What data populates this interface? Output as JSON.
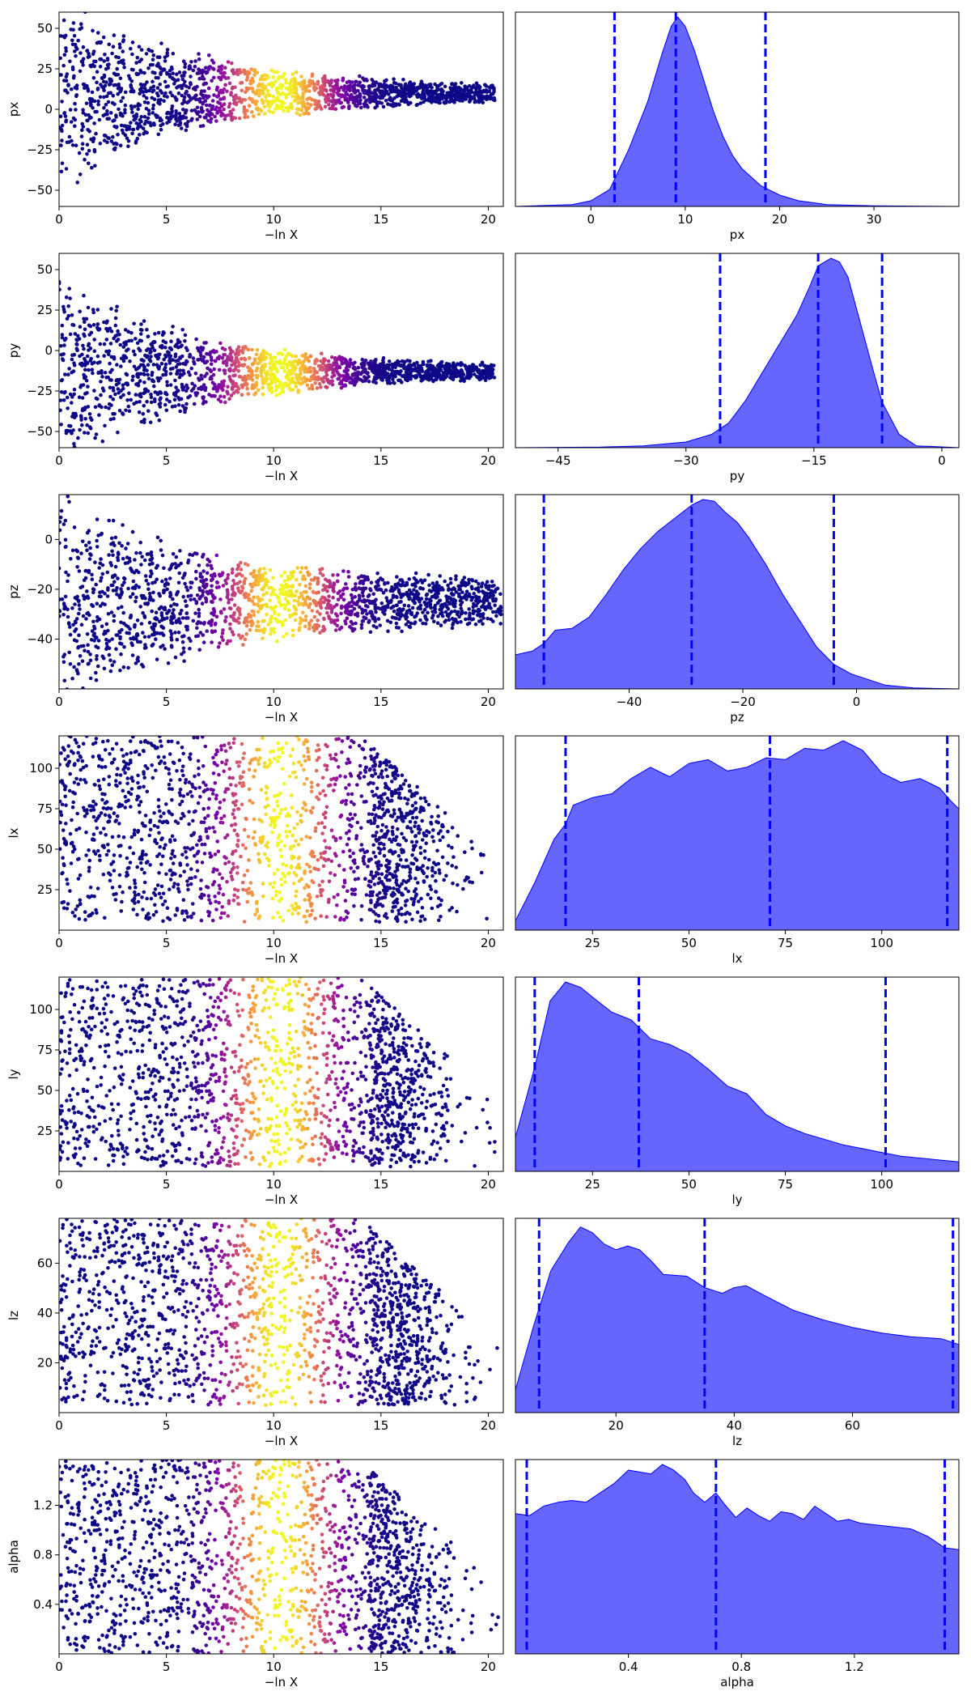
{
  "figure": {
    "title": "",
    "trace_xlabel": "−ln X",
    "trace_xlim": [
      0,
      20.7
    ],
    "trace_xticks": [
      0,
      5,
      10,
      15,
      20
    ],
    "trace_color_peak": 10.3,
    "trace_color_width": 2.6,
    "kde_color": "#0000ff",
    "kde_fill_opacity": 0.6,
    "quantile_line_color": "#0000ff",
    "colormap": "plasma",
    "grid": false,
    "legend": "none"
  },
  "chart_data": [
    {
      "type": "scatter",
      "name": "px",
      "trace": {
        "ylabel": "px",
        "ylim": [
          -60,
          60
        ],
        "yticks": [
          -50,
          -25,
          0,
          25,
          50
        ],
        "center": 10,
        "spread_start": 60,
        "spread_end": 4,
        "converge_at": 20.3
      },
      "posterior": {
        "type": "area",
        "xlabel": "px",
        "xlim": [
          -8,
          39
        ],
        "xticks": [
          0,
          10,
          20,
          30
        ],
        "quantiles": [
          2.5,
          9,
          18.5
        ],
        "density": [
          [
            -8,
            0
          ],
          [
            -2,
            0.01
          ],
          [
            0,
            0.03
          ],
          [
            2,
            0.09
          ],
          [
            4,
            0.3
          ],
          [
            6,
            0.55
          ],
          [
            7.5,
            0.8
          ],
          [
            8.5,
            0.95
          ],
          [
            9.2,
            1.0
          ],
          [
            10,
            0.95
          ],
          [
            11,
            0.82
          ],
          [
            12,
            0.66
          ],
          [
            13,
            0.5
          ],
          [
            14,
            0.37
          ],
          [
            15,
            0.27
          ],
          [
            16,
            0.2
          ],
          [
            18,
            0.11
          ],
          [
            20,
            0.06
          ],
          [
            22,
            0.03
          ],
          [
            25,
            0.01
          ],
          [
            30,
            0.003
          ],
          [
            39,
            0
          ]
        ]
      }
    },
    {
      "type": "scatter",
      "name": "py",
      "trace": {
        "ylabel": "py",
        "ylim": [
          -60,
          60
        ],
        "yticks": [
          -50,
          -25,
          0,
          25,
          50
        ],
        "center": -13,
        "spread_start": 60,
        "spread_end": 3,
        "converge_at": 20.3
      },
      "posterior": {
        "type": "area",
        "xlabel": "py",
        "xlim": [
          -50,
          2
        ],
        "xticks": [
          -45,
          -30,
          -15,
          0
        ],
        "quantiles": [
          -26,
          -14.5,
          -7
        ],
        "density": [
          [
            -50,
            0
          ],
          [
            -40,
            0.003
          ],
          [
            -35,
            0.01
          ],
          [
            -30,
            0.03
          ],
          [
            -27,
            0.07
          ],
          [
            -25,
            0.13
          ],
          [
            -23,
            0.25
          ],
          [
            -21,
            0.4
          ],
          [
            -19,
            0.55
          ],
          [
            -17,
            0.7
          ],
          [
            -15.5,
            0.85
          ],
          [
            -14.5,
            0.96
          ],
          [
            -13,
            1.0
          ],
          [
            -12,
            0.98
          ],
          [
            -11,
            0.9
          ],
          [
            -9.5,
            0.65
          ],
          [
            -8,
            0.4
          ],
          [
            -7,
            0.24
          ],
          [
            -5,
            0.07
          ],
          [
            -3,
            0.01
          ],
          [
            2,
            0
          ]
        ]
      }
    },
    {
      "type": "scatter",
      "name": "pz",
      "trace": {
        "ylabel": "pz",
        "ylim": [
          -60,
          18
        ],
        "yticks": [
          -40,
          -20,
          0
        ],
        "center": -25,
        "spread_start": 40,
        "spread_end": 9,
        "converge_at": 20.6
      },
      "posterior": {
        "type": "area",
        "xlabel": "pz",
        "xlim": [
          -60,
          18
        ],
        "xticks": [
          -40,
          -20,
          0
        ],
        "quantiles": [
          -55,
          -29,
          -4
        ],
        "density": [
          [
            -60,
            0.18
          ],
          [
            -57,
            0.2
          ],
          [
            -55,
            0.24
          ],
          [
            -53,
            0.31
          ],
          [
            -50,
            0.32
          ],
          [
            -47,
            0.38
          ],
          [
            -44,
            0.5
          ],
          [
            -41,
            0.63
          ],
          [
            -38,
            0.74
          ],
          [
            -35,
            0.83
          ],
          [
            -32,
            0.9
          ],
          [
            -29,
            0.97
          ],
          [
            -27,
            1.0
          ],
          [
            -25,
            0.99
          ],
          [
            -23,
            0.93
          ],
          [
            -21,
            0.88
          ],
          [
            -19,
            0.8
          ],
          [
            -16,
            0.66
          ],
          [
            -13,
            0.5
          ],
          [
            -10,
            0.36
          ],
          [
            -7,
            0.22
          ],
          [
            -4,
            0.13
          ],
          [
            -1,
            0.08
          ],
          [
            2,
            0.05
          ],
          [
            5,
            0.02
          ],
          [
            10,
            0.005
          ],
          [
            18,
            0
          ]
        ]
      }
    },
    {
      "type": "scatter",
      "name": "lx",
      "trace": {
        "ylabel": "lx",
        "ylim": [
          0,
          120
        ],
        "yticks": [
          25,
          50,
          75,
          100
        ],
        "uniform_low": 5,
        "uniform_high": 120,
        "tail_width": 20.3
      },
      "posterior": {
        "type": "area",
        "xlabel": "lx",
        "xlim": [
          5,
          120
        ],
        "xticks": [
          25,
          50,
          75,
          100
        ],
        "quantiles": [
          18,
          71,
          117
        ],
        "density": [
          [
            5,
            0.05
          ],
          [
            10,
            0.25
          ],
          [
            15,
            0.48
          ],
          [
            18,
            0.56
          ],
          [
            20,
            0.66
          ],
          [
            25,
            0.7
          ],
          [
            30,
            0.72
          ],
          [
            35,
            0.8
          ],
          [
            40,
            0.86
          ],
          [
            45,
            0.81
          ],
          [
            50,
            0.88
          ],
          [
            55,
            0.9
          ],
          [
            60,
            0.84
          ],
          [
            65,
            0.86
          ],
          [
            70,
            0.91
          ],
          [
            75,
            0.9
          ],
          [
            80,
            0.96
          ],
          [
            85,
            0.95
          ],
          [
            90,
            1.0
          ],
          [
            95,
            0.95
          ],
          [
            100,
            0.83
          ],
          [
            105,
            0.78
          ],
          [
            110,
            0.8
          ],
          [
            115,
            0.75
          ],
          [
            118,
            0.68
          ],
          [
            120,
            0.64
          ]
        ]
      }
    },
    {
      "type": "scatter",
      "name": "ly",
      "trace": {
        "ylabel": "ly",
        "ylim": [
          0,
          120
        ],
        "yticks": [
          25,
          50,
          75,
          100
        ],
        "uniform_low": 3,
        "uniform_high": 120,
        "tail_width": 20.3
      },
      "posterior": {
        "type": "area",
        "xlabel": "ly",
        "xlim": [
          5,
          120
        ],
        "xticks": [
          25,
          50,
          75,
          100
        ],
        "quantiles": [
          10,
          37,
          101
        ],
        "density": [
          [
            5,
            0.18
          ],
          [
            10,
            0.55
          ],
          [
            14,
            0.9
          ],
          [
            18,
            1.0
          ],
          [
            22,
            0.97
          ],
          [
            25,
            0.92
          ],
          [
            30,
            0.84
          ],
          [
            35,
            0.8
          ],
          [
            40,
            0.7
          ],
          [
            45,
            0.67
          ],
          [
            50,
            0.62
          ],
          [
            55,
            0.54
          ],
          [
            60,
            0.45
          ],
          [
            65,
            0.41
          ],
          [
            70,
            0.3
          ],
          [
            75,
            0.24
          ],
          [
            80,
            0.2
          ],
          [
            85,
            0.17
          ],
          [
            90,
            0.14
          ],
          [
            95,
            0.12
          ],
          [
            100,
            0.1
          ],
          [
            105,
            0.08
          ],
          [
            110,
            0.07
          ],
          [
            115,
            0.06
          ],
          [
            120,
            0.05
          ]
        ]
      }
    },
    {
      "type": "scatter",
      "name": "lz",
      "trace": {
        "ylabel": "lz",
        "ylim": [
          0,
          78
        ],
        "yticks": [
          20,
          40,
          60
        ],
        "uniform_low": 3,
        "uniform_high": 78,
        "tail_width": 20.5
      },
      "posterior": {
        "type": "area",
        "xlabel": "lz",
        "xlim": [
          3,
          78
        ],
        "xticks": [
          20,
          40,
          60
        ],
        "quantiles": [
          7,
          35,
          77
        ],
        "density": [
          [
            3,
            0.12
          ],
          [
            6,
            0.45
          ],
          [
            9,
            0.75
          ],
          [
            12,
            0.9
          ],
          [
            14,
            0.98
          ],
          [
            16,
            0.95
          ],
          [
            18,
            0.89
          ],
          [
            20,
            0.86
          ],
          [
            22,
            0.88
          ],
          [
            24,
            0.86
          ],
          [
            26,
            0.8
          ],
          [
            28,
            0.73
          ],
          [
            32,
            0.72
          ],
          [
            35,
            0.66
          ],
          [
            38,
            0.63
          ],
          [
            40,
            0.66
          ],
          [
            42,
            0.67
          ],
          [
            45,
            0.62
          ],
          [
            50,
            0.54
          ],
          [
            55,
            0.49
          ],
          [
            60,
            0.45
          ],
          [
            65,
            0.42
          ],
          [
            70,
            0.4
          ],
          [
            75,
            0.39
          ],
          [
            78,
            0.36
          ]
        ]
      }
    },
    {
      "type": "scatter",
      "name": "alpha",
      "trace": {
        "ylabel": "alpha",
        "ylim": [
          0,
          1.57
        ],
        "yticks": [
          0.4,
          0.8,
          1.2
        ],
        "uniform_low": 0,
        "uniform_high": 1.57,
        "tail_width": 20.5
      },
      "posterior": {
        "type": "area",
        "xlabel": "alpha",
        "xlim": [
          0,
          1.57
        ],
        "xticks": [
          0.4,
          0.8,
          1.2
        ],
        "quantiles": [
          0.04,
          0.71,
          1.52
        ],
        "density": [
          [
            0,
            0.74
          ],
          [
            0.05,
            0.73
          ],
          [
            0.1,
            0.78
          ],
          [
            0.15,
            0.8
          ],
          [
            0.2,
            0.81
          ],
          [
            0.25,
            0.8
          ],
          [
            0.3,
            0.85
          ],
          [
            0.35,
            0.9
          ],
          [
            0.4,
            0.97
          ],
          [
            0.44,
            0.96
          ],
          [
            0.48,
            0.95
          ],
          [
            0.52,
            1.0
          ],
          [
            0.56,
            0.97
          ],
          [
            0.6,
            0.92
          ],
          [
            0.63,
            0.85
          ],
          [
            0.67,
            0.8
          ],
          [
            0.71,
            0.85
          ],
          [
            0.74,
            0.79
          ],
          [
            0.78,
            0.72
          ],
          [
            0.82,
            0.77
          ],
          [
            0.86,
            0.73
          ],
          [
            0.9,
            0.7
          ],
          [
            0.94,
            0.75
          ],
          [
            0.98,
            0.74
          ],
          [
            1.02,
            0.71
          ],
          [
            1.06,
            0.78
          ],
          [
            1.1,
            0.74
          ],
          [
            1.14,
            0.7
          ],
          [
            1.18,
            0.71
          ],
          [
            1.22,
            0.69
          ],
          [
            1.28,
            0.68
          ],
          [
            1.34,
            0.67
          ],
          [
            1.4,
            0.66
          ],
          [
            1.46,
            0.62
          ],
          [
            1.52,
            0.56
          ],
          [
            1.57,
            0.55
          ]
        ]
      }
    }
  ]
}
